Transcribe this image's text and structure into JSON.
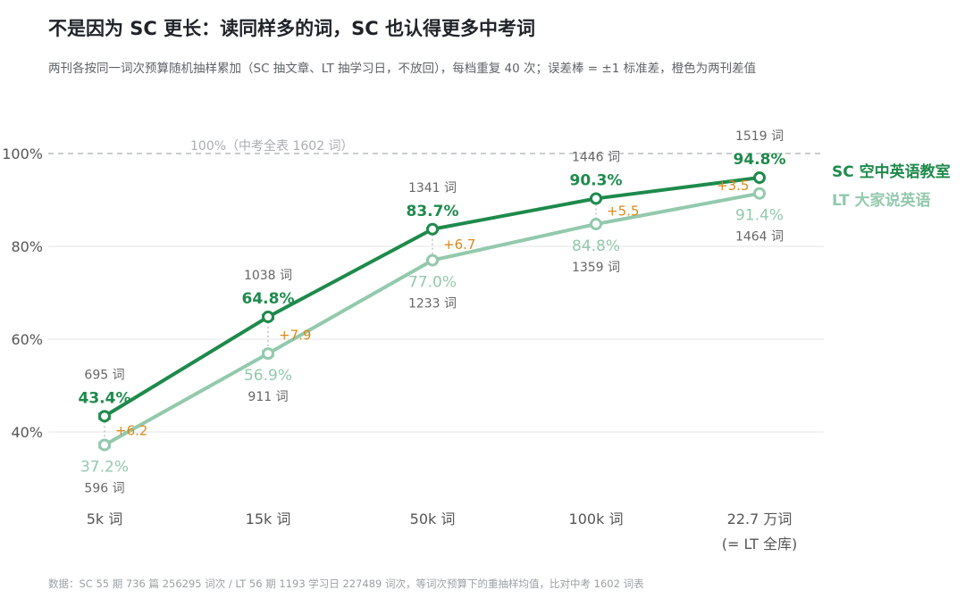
{
  "header": {
    "title": "不是因为 SC 更长：读同样多的词，SC 也认得更多中考词",
    "subtitle": "两刊各按同一词次预算随机抽样累加（SC 抽文章、LT 抽学习日，不放回），每档重复 40 次；误差棒 = ±1 标准差，橙色为两刊差值"
  },
  "footer": {
    "note": "数据：SC 55 期 736 篇 256295 词次 / LT 56 期 1193 学习日 227489 词次，等词次预算下的重抽样均值，比对中考 1602 词表"
  },
  "colors": {
    "sc": "#1e8a4c",
    "lt": "#93c9ad",
    "diff": "#d98a1c",
    "grid": "#e6e6e6",
    "reference": "#a9adb2",
    "count_text": "#666666",
    "axis_text": "#555555"
  },
  "chart_data": {
    "type": "line",
    "categories": [
      "5k 词",
      "15k 词",
      "50k 词",
      "100k 词",
      "22.7 万词"
    ],
    "category_sublabels": [
      "",
      "",
      "",
      "",
      "(= LT 全库)"
    ],
    "ylim": [
      30,
      100
    ],
    "yticks": [
      40,
      60,
      80,
      100
    ],
    "ytick_labels": [
      "40%",
      "60%",
      "80%",
      "100%"
    ],
    "grid": true,
    "reference_line": {
      "value": 100,
      "label": "100%（中考全表 1602 词）"
    },
    "legend_position": "right",
    "series": [
      {
        "key": "sc",
        "name": "SC 空中英语教室",
        "values": [
          43.4,
          64.8,
          83.7,
          90.3,
          94.8
        ],
        "value_labels": [
          "43.4%",
          "64.8%",
          "83.7%",
          "90.3%",
          "94.8%"
        ],
        "counts": [
          "695 词",
          "1038 词",
          "1341 词",
          "1446 词",
          "1519 词"
        ],
        "error_bars": [
          0.6,
          0.5,
          0.3,
          0.2,
          0
        ]
      },
      {
        "key": "lt",
        "name": "LT 大家说英语",
        "values": [
          37.2,
          56.9,
          77.0,
          84.8,
          91.4
        ],
        "value_labels": [
          "37.2%",
          "56.9%",
          "77.0%",
          "84.8%",
          "91.4%"
        ],
        "counts": [
          "596 词",
          "911 词",
          "1233 词",
          "1359 词",
          "1464 词"
        ],
        "error_bars": [
          0.6,
          0.6,
          0.3,
          0.2,
          0
        ]
      }
    ],
    "differences": [
      6.2,
      7.9,
      6.7,
      5.5,
      3.5
    ],
    "difference_labels": [
      "+6.2",
      "+7.9",
      "+6.7",
      "+5.5",
      "+3.5"
    ]
  }
}
